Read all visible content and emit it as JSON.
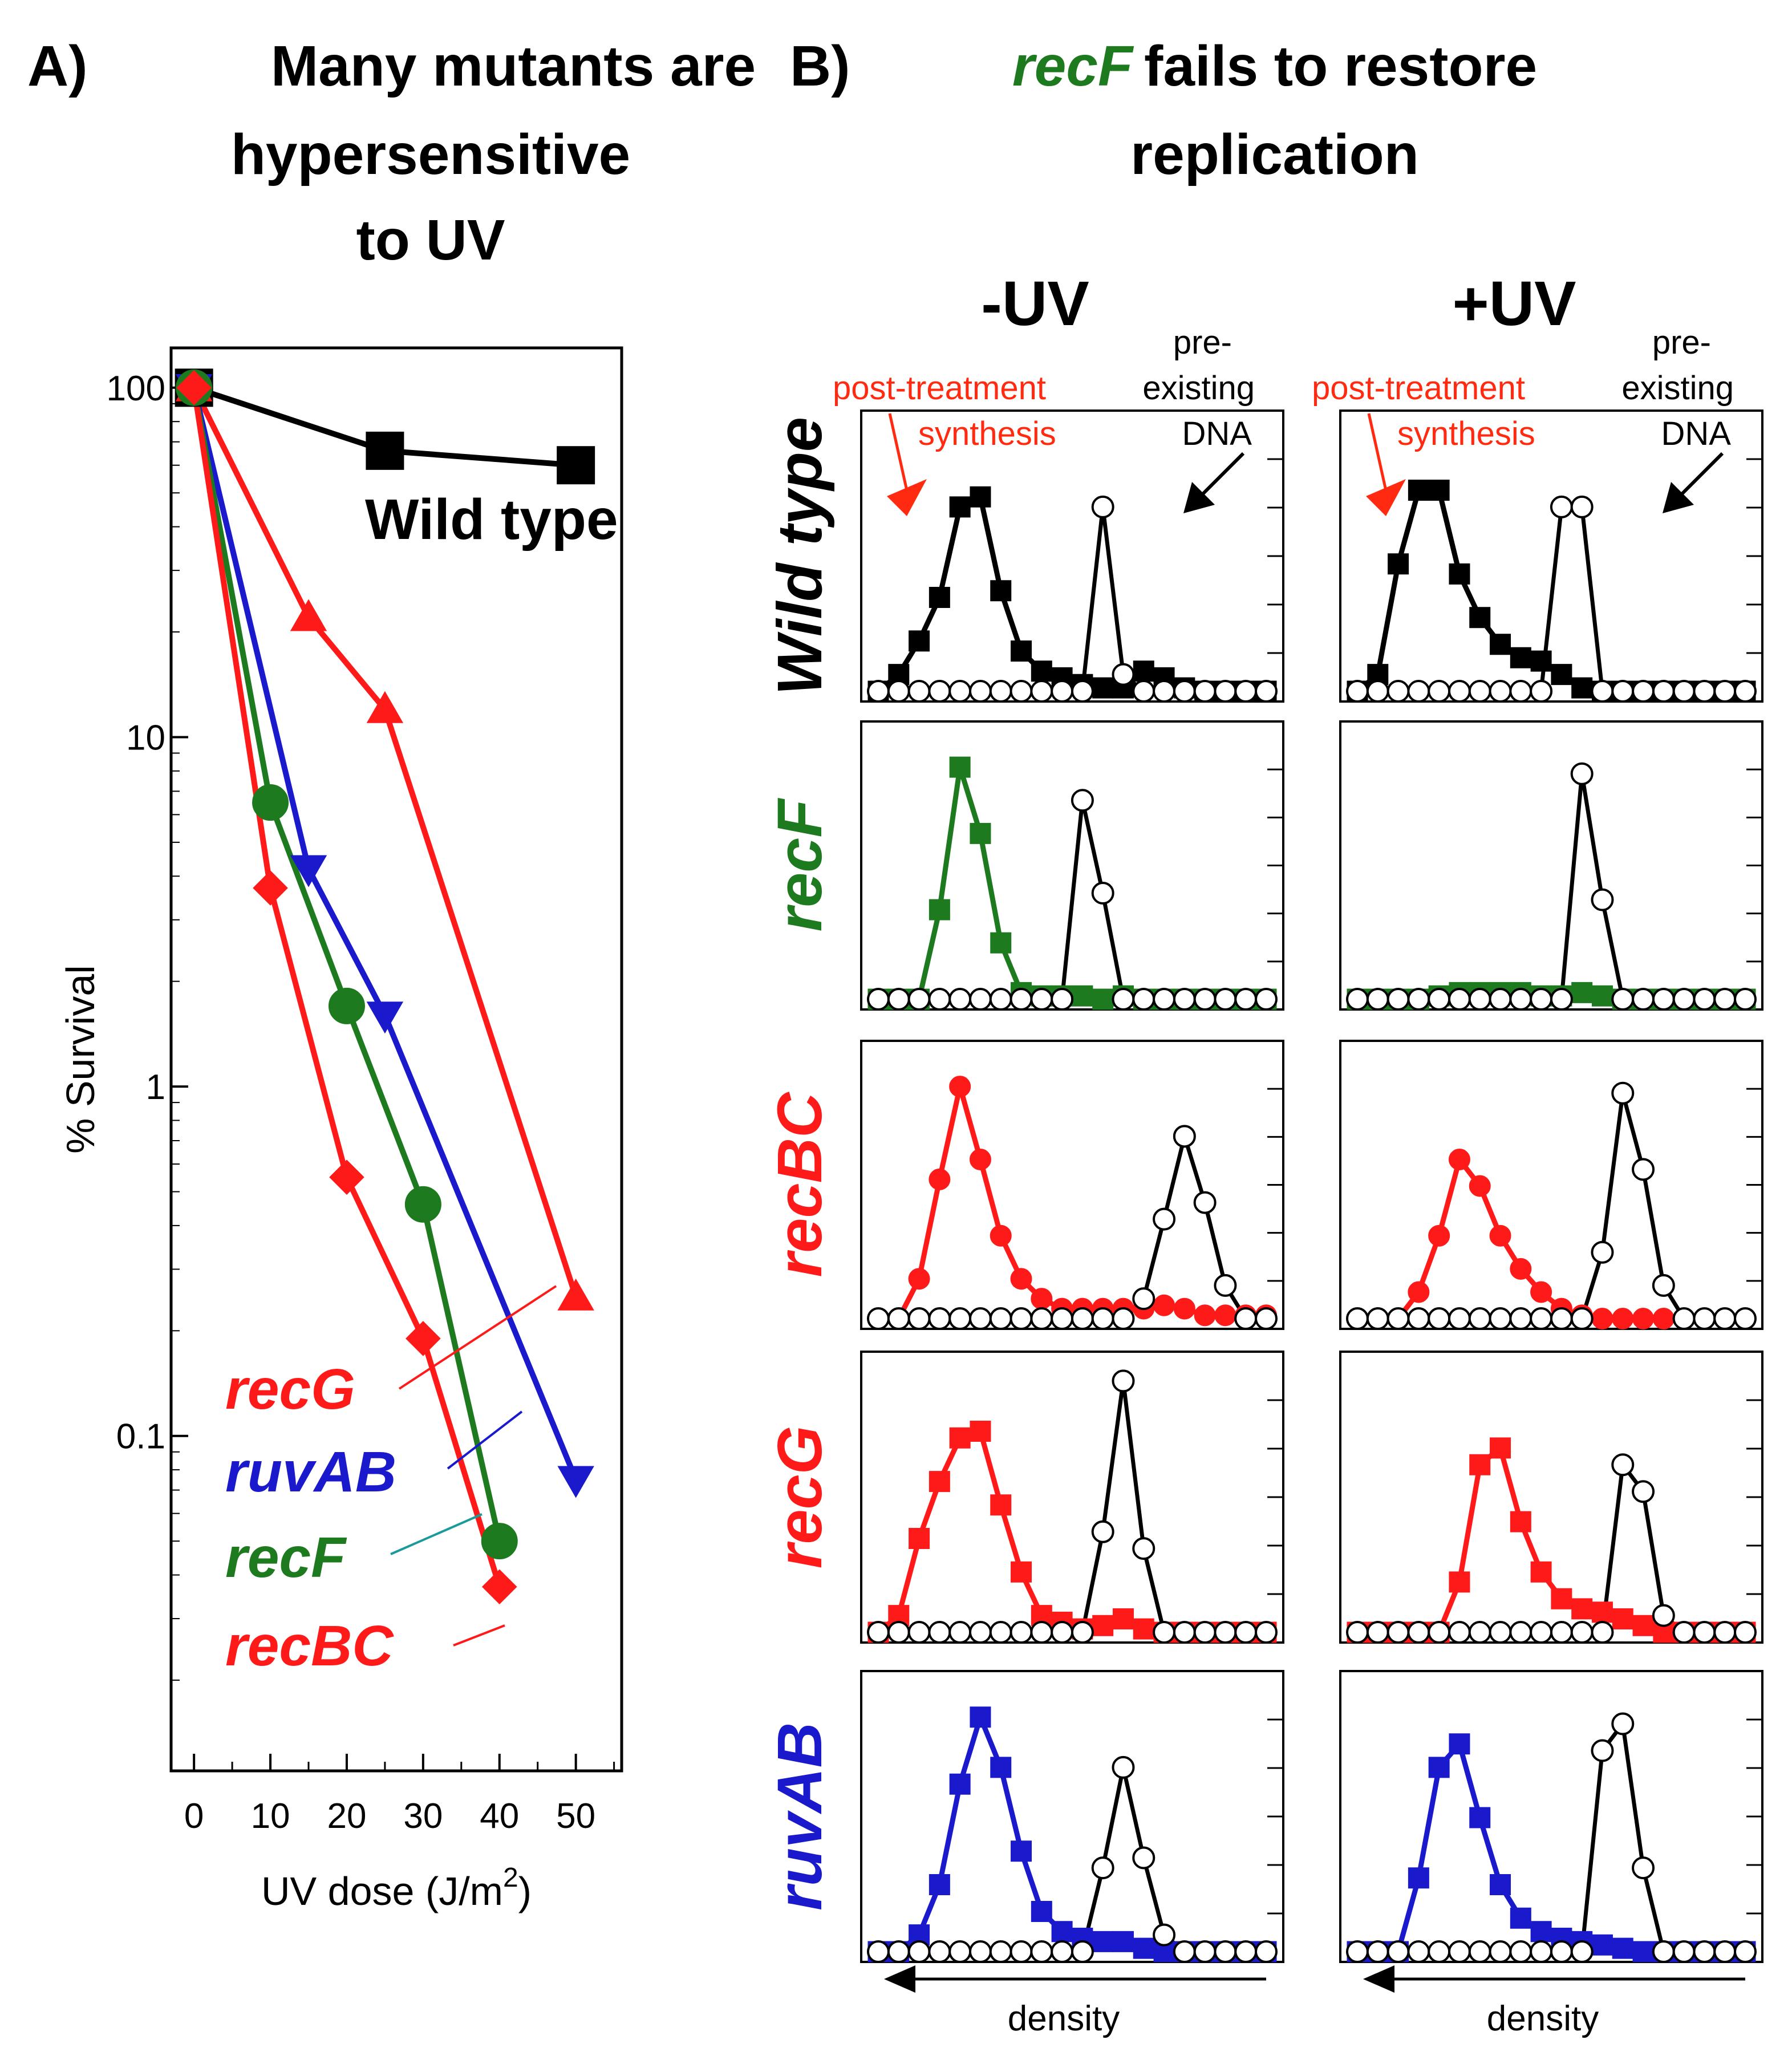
{
  "panelA": {
    "letter": "A)",
    "title_lines": [
      "Many mutants are",
      "hypersensitive",
      "to UV"
    ]
  },
  "panelB": {
    "letter": "B)",
    "title_gene": "recF",
    "title_rest": "fails to restore",
    "title_line2": "replication",
    "col_labels": [
      "-UV",
      "+UV"
    ],
    "row_labels": [
      "Wild type",
      "recF",
      "recBC",
      "recG",
      "ruvAB"
    ],
    "annotations": {
      "post": [
        "post-treatment",
        "synthesis"
      ],
      "pre": [
        "pre-",
        "existing",
        "DNA"
      ]
    },
    "density_label": "density"
  },
  "colors": {
    "wildtype": "#000000",
    "recBC": "#ff1a1a",
    "recG": "#ff1a1a",
    "ruvAB": "#1a1acc",
    "recF": "#1e7a1e",
    "annot_red": "#ff2a10"
  },
  "chart_data": [
    {
      "type": "line",
      "id": "survival",
      "xlabel": "UV dose (J/m",
      "xlabel_sup": "2",
      "xlabel_close": ")",
      "ylabel": "% Survival",
      "xlim": [
        -3,
        56
      ],
      "ylim": [
        0.011,
        130
      ],
      "yscale": "log",
      "xticks": [
        0,
        10,
        20,
        30,
        40,
        50
      ],
      "yticks": [
        100,
        10,
        1,
        0.1
      ],
      "ytick_labels": [
        "100",
        "10",
        "1",
        "0.1"
      ],
      "series": [
        {
          "name": "Wild type",
          "marker": "square",
          "color": "#000000",
          "x": [
            0,
            25,
            50
          ],
          "y": [
            100,
            66,
            60
          ]
        },
        {
          "name": "recG",
          "marker": "triangle-up",
          "color": "#ff1a1a",
          "x": [
            0,
            15,
            25,
            50
          ],
          "y": [
            100,
            22,
            12,
            0.25
          ]
        },
        {
          "name": "ruvAB",
          "marker": "triangle-down",
          "color": "#1a1acc",
          "x": [
            0,
            15,
            25,
            50
          ],
          "y": [
            100,
            4.2,
            1.6,
            0.075
          ]
        },
        {
          "name": "recF",
          "marker": "circle",
          "color": "#1e7a1e",
          "x": [
            0,
            10,
            20,
            30,
            40
          ],
          "y": [
            100,
            6.5,
            1.7,
            0.46,
            0.05
          ]
        },
        {
          "name": "recBC",
          "marker": "diamond",
          "color": "#ff1a1a",
          "x": [
            0,
            10,
            20,
            30,
            40
          ],
          "y": [
            100,
            3.7,
            0.55,
            0.19,
            0.037
          ]
        }
      ]
    },
    {
      "type": "line",
      "id": "density-profiles",
      "note_axis": "density",
      "x": [
        1,
        2,
        3,
        4,
        5,
        6,
        7,
        8,
        9,
        10,
        11,
        12,
        13,
        14,
        15,
        16,
        17,
        18,
        19,
        20
      ],
      "panels": [
        {
          "row": "Wild type",
          "col": "-UV",
          "newly": {
            "marker": "square",
            "color": "#000000",
            "values": [
              0,
              5,
              15,
              28,
              55,
              58,
              30,
              12,
              6,
              4,
              2,
              1,
              1,
              6,
              4,
              1,
              0,
              0,
              0,
              0
            ]
          },
          "pre": {
            "values": [
              0,
              0,
              0,
              0,
              0,
              0,
              0,
              0,
              0,
              0,
              0,
              55,
              5,
              0,
              0,
              0,
              0,
              0,
              0,
              0
            ]
          }
        },
        {
          "row": "Wild type",
          "col": "+UV",
          "newly": {
            "marker": "square",
            "color": "#000000",
            "values": [
              0,
              5,
              38,
              60,
              60,
              35,
              22,
              14,
              10,
              9,
              5,
              1,
              0,
              0,
              0,
              0,
              0,
              0,
              0,
              0
            ]
          },
          "pre": {
            "values": [
              0,
              0,
              0,
              0,
              0,
              0,
              0,
              0,
              0,
              0,
              55,
              55,
              0,
              0,
              0,
              0,
              0,
              0,
              0,
              0
            ]
          }
        },
        {
          "row": "recF",
          "col": "-UV",
          "newly": {
            "marker": "square",
            "color": "#1e7a1e",
            "values": [
              0,
              0,
              0,
              27,
              70,
              50,
              17,
              2,
              1,
              1,
              1,
              0,
              1,
              0,
              0,
              0,
              0,
              0,
              0,
              0
            ]
          },
          "pre": {
            "values": [
              0,
              0,
              0,
              0,
              0,
              0,
              0,
              0,
              0,
              0,
              60,
              32,
              0,
              0,
              0,
              0,
              0,
              0,
              0,
              0
            ]
          }
        },
        {
          "row": "recF",
          "col": "+UV",
          "newly": {
            "marker": "square",
            "color": "#1e7a1e",
            "values": [
              0,
              0,
              0,
              0,
              1,
              2,
              2,
              2,
              2,
              1,
              1,
              2,
              1,
              0,
              0,
              0,
              0,
              0,
              0,
              0
            ]
          },
          "pre": {
            "values": [
              0,
              0,
              0,
              0,
              0,
              0,
              0,
              0,
              0,
              0,
              0,
              68,
              30,
              0,
              0,
              0,
              0,
              0,
              0,
              0
            ]
          }
        },
        {
          "row": "recBC",
          "col": "-UV",
          "newly": {
            "marker": "circle",
            "color": "#ff1a1a",
            "values": [
              0,
              0,
              12,
              42,
              70,
              48,
              25,
              12,
              6,
              3,
              3,
              3,
              3,
              3,
              4,
              3,
              1,
              1,
              1,
              1
            ]
          },
          "pre": {
            "values": [
              0,
              0,
              0,
              0,
              0,
              0,
              0,
              0,
              0,
              0,
              0,
              0,
              0,
              6,
              30,
              55,
              35,
              10,
              0,
              0
            ]
          }
        },
        {
          "row": "recBC",
          "col": "+UV",
          "newly": {
            "marker": "circle",
            "color": "#ff1a1a",
            "values": [
              0,
              0,
              0,
              8,
              25,
              48,
              40,
              25,
              15,
              8,
              3,
              1,
              0,
              0,
              0,
              0,
              0,
              0,
              0,
              0
            ]
          },
          "pre": {
            "values": [
              0,
              0,
              0,
              0,
              0,
              0,
              0,
              0,
              0,
              0,
              0,
              0,
              20,
              68,
              45,
              10,
              0,
              0,
              0,
              0
            ]
          }
        },
        {
          "row": "recG",
          "col": "-UV",
          "newly": {
            "marker": "square",
            "color": "#ff1a1a",
            "values": [
              0,
              5,
              28,
              45,
              58,
              60,
              38,
              18,
              5,
              3,
              1,
              2,
              4,
              1,
              0,
              0,
              0,
              0,
              0,
              0
            ]
          },
          "pre": {
            "values": [
              0,
              0,
              0,
              0,
              0,
              0,
              0,
              0,
              0,
              0,
              0,
              30,
              75,
              25,
              0,
              0,
              0,
              0,
              0,
              0
            ]
          }
        },
        {
          "row": "recG",
          "col": "+UV",
          "newly": {
            "marker": "square",
            "color": "#ff1a1a",
            "values": [
              0,
              0,
              0,
              0,
              0,
              15,
              50,
              55,
              33,
              18,
              10,
              7,
              6,
              4,
              2,
              0,
              0,
              0,
              0,
              0
            ]
          },
          "pre": {
            "values": [
              0,
              0,
              0,
              0,
              0,
              0,
              0,
              0,
              0,
              0,
              0,
              0,
              0,
              50,
              42,
              5,
              0,
              0,
              0,
              0
            ]
          }
        },
        {
          "row": "ruvAB",
          "col": "-UV",
          "newly": {
            "marker": "square",
            "color": "#1a1acc",
            "values": [
              0,
              0,
              5,
              20,
              50,
              70,
              55,
              30,
              12,
              6,
              4,
              3,
              3,
              1,
              0,
              0,
              0,
              0,
              0,
              0
            ]
          },
          "pre": {
            "values": [
              0,
              0,
              0,
              0,
              0,
              0,
              0,
              0,
              0,
              0,
              0,
              25,
              55,
              28,
              5,
              0,
              0,
              0,
              0,
              0
            ]
          }
        },
        {
          "row": "ruvAB",
          "col": "+UV",
          "newly": {
            "marker": "square",
            "color": "#1a1acc",
            "values": [
              0,
              0,
              0,
              22,
              55,
              62,
              40,
              20,
              10,
              6,
              4,
              3,
              2,
              1,
              0,
              0,
              0,
              0,
              0,
              0
            ]
          },
          "pre": {
            "values": [
              0,
              0,
              0,
              0,
              0,
              0,
              0,
              0,
              0,
              0,
              0,
              0,
              60,
              68,
              25,
              0,
              0,
              0,
              0,
              0
            ]
          }
        }
      ]
    }
  ]
}
